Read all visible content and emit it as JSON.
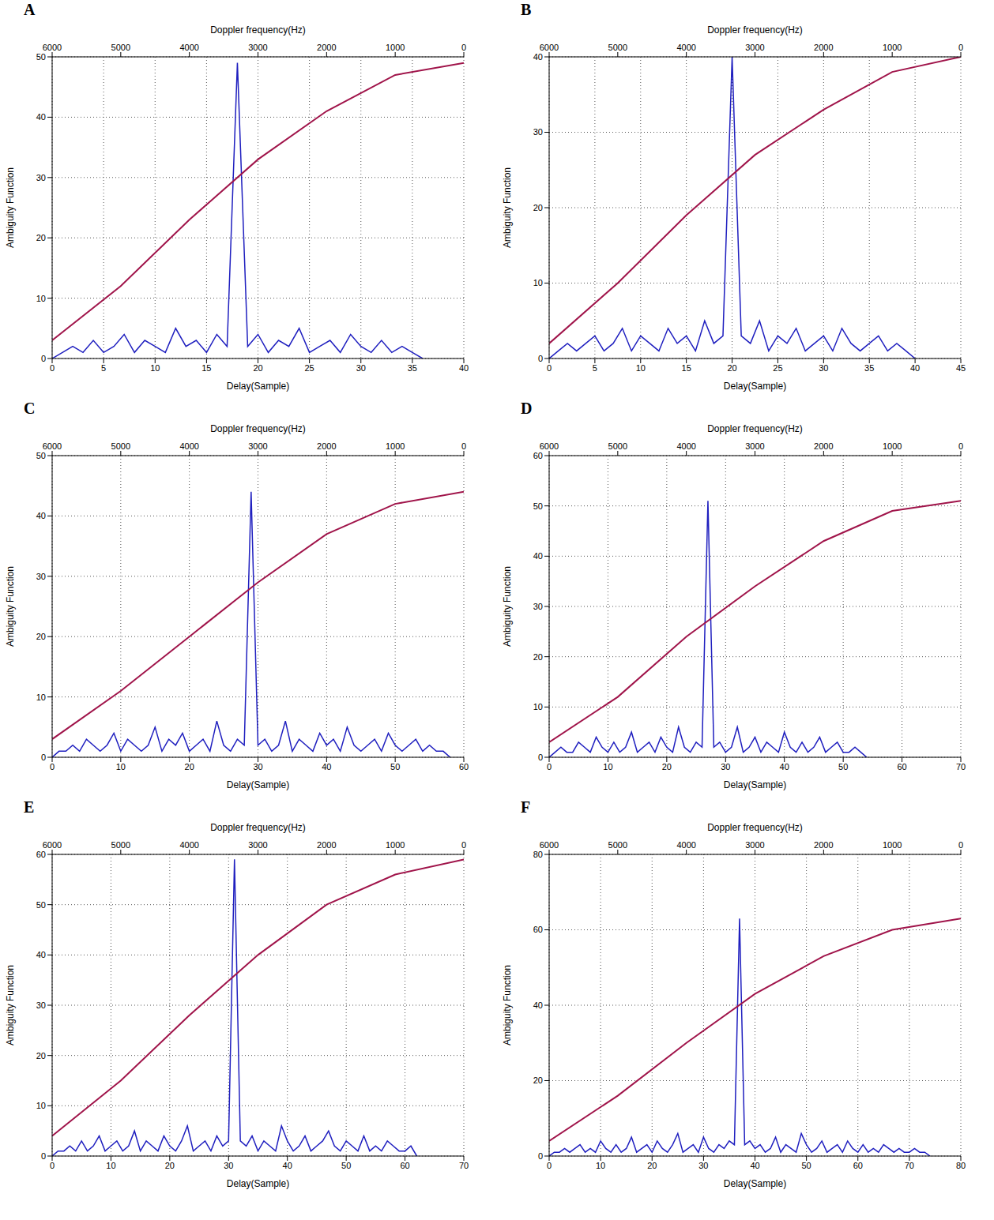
{
  "chart_data": [
    {
      "type": "line",
      "title": "A",
      "x_label": "Delay(Sample)",
      "y_label": "Ambiguity Function",
      "grid": true,
      "x": [
        0,
        1,
        2,
        3,
        4,
        5,
        6,
        7,
        8,
        9,
        10,
        11,
        12,
        13,
        14,
        15,
        16,
        17,
        18,
        19,
        20,
        21,
        22,
        23,
        24,
        25,
        26,
        27,
        28,
        29,
        30,
        31,
        32,
        33,
        34,
        35,
        36
      ],
      "series": [
        {
          "color": "#1f1fbf",
          "values": [
            0,
            1,
            2,
            1,
            3,
            1,
            2,
            4,
            1,
            3,
            2,
            1,
            5,
            2,
            3,
            1,
            4,
            2,
            49,
            2,
            4,
            1,
            3,
            2,
            5,
            1,
            2,
            3,
            1,
            4,
            2,
            1,
            3,
            1,
            2,
            1,
            0
          ]
        }
      ],
      "xlim": [
        0,
        40
      ],
      "xticks": [
        0,
        5,
        10,
        15,
        20,
        25,
        30,
        35,
        40
      ],
      "ylim": [
        0,
        50
      ],
      "yticks": [
        0,
        10,
        20,
        30,
        40,
        50
      ],
      "doppler": {
        "x_label": "Doppler frequency(Hz)",
        "x": [
          0,
          1000,
          2000,
          3000,
          4000,
          5000,
          6000
        ],
        "xlim": [
          0,
          6000
        ],
        "xticks": [
          0,
          1000,
          2000,
          3000,
          4000,
          5000,
          6000
        ],
        "series": [
          {
            "color": "#a0144a",
            "values": [
              49,
              47,
              41,
              33,
              23,
              12,
              3
            ]
          }
        ]
      }
    },
    {
      "type": "line",
      "title": "B",
      "x_label": "Delay(Sample)",
      "y_label": "Ambiguity Function",
      "grid": true,
      "x": [
        0,
        1,
        2,
        3,
        4,
        5,
        6,
        7,
        8,
        9,
        10,
        11,
        12,
        13,
        14,
        15,
        16,
        17,
        18,
        19,
        20,
        21,
        22,
        23,
        24,
        25,
        26,
        27,
        28,
        29,
        30,
        31,
        32,
        33,
        34,
        35,
        36,
        37,
        38,
        39,
        40
      ],
      "series": [
        {
          "color": "#1f1fbf",
          "values": [
            0,
            1,
            2,
            1,
            2,
            3,
            1,
            2,
            4,
            1,
            3,
            2,
            1,
            4,
            2,
            3,
            1,
            5,
            2,
            3,
            40,
            3,
            2,
            5,
            1,
            3,
            2,
            4,
            1,
            2,
            3,
            1,
            4,
            2,
            1,
            2,
            3,
            1,
            2,
            1,
            0
          ]
        }
      ],
      "xlim": [
        0,
        45
      ],
      "xticks": [
        0,
        5,
        10,
        15,
        20,
        25,
        30,
        35,
        40,
        45
      ],
      "ylim": [
        0,
        40
      ],
      "yticks": [
        0,
        10,
        20,
        30,
        40
      ],
      "doppler": {
        "x_label": "Doppler frequency(Hz)",
        "x": [
          0,
          1000,
          2000,
          3000,
          4000,
          5000,
          6000
        ],
        "xlim": [
          0,
          6000
        ],
        "xticks": [
          0,
          1000,
          2000,
          3000,
          4000,
          5000,
          6000
        ],
        "series": [
          {
            "color": "#a0144a",
            "values": [
              40,
              38,
              33,
              27,
              19,
              10,
              2
            ]
          }
        ]
      }
    },
    {
      "type": "line",
      "title": "C",
      "x_label": "Delay(Sample)",
      "y_label": "Ambiguity Function",
      "grid": true,
      "x": [
        0,
        1,
        2,
        3,
        4,
        5,
        6,
        7,
        8,
        9,
        10,
        11,
        12,
        13,
        14,
        15,
        16,
        17,
        18,
        19,
        20,
        21,
        22,
        23,
        24,
        25,
        26,
        27,
        28,
        29,
        30,
        31,
        32,
        33,
        34,
        35,
        36,
        37,
        38,
        39,
        40,
        41,
        42,
        43,
        44,
        45,
        46,
        47,
        48,
        49,
        50,
        51,
        52,
        53,
        54,
        55,
        56,
        57,
        58
      ],
      "series": [
        {
          "color": "#1f1fbf",
          "values": [
            0,
            1,
            1,
            2,
            1,
            3,
            2,
            1,
            2,
            4,
            1,
            3,
            2,
            1,
            2,
            5,
            1,
            3,
            2,
            4,
            1,
            2,
            3,
            1,
            6,
            2,
            1,
            3,
            2,
            44,
            2,
            3,
            1,
            2,
            6,
            1,
            3,
            2,
            1,
            4,
            2,
            3,
            1,
            5,
            2,
            1,
            2,
            3,
            1,
            4,
            2,
            1,
            2,
            3,
            1,
            2,
            1,
            1,
            0
          ]
        }
      ],
      "xlim": [
        0,
        60
      ],
      "xticks": [
        0,
        10,
        20,
        30,
        40,
        50,
        60
      ],
      "ylim": [
        0,
        50
      ],
      "yticks": [
        0,
        10,
        20,
        30,
        40,
        50
      ],
      "doppler": {
        "x_label": "Doppler frequency(Hz)",
        "x": [
          0,
          1000,
          2000,
          3000,
          4000,
          5000,
          6000
        ],
        "xlim": [
          0,
          6000
        ],
        "xticks": [
          0,
          1000,
          2000,
          3000,
          4000,
          5000,
          6000
        ],
        "series": [
          {
            "color": "#a0144a",
            "values": [
              44,
              42,
              37,
              29,
              20,
              11,
              3
            ]
          }
        ]
      }
    },
    {
      "type": "line",
      "title": "D",
      "x_label": "Delay(Sample)",
      "y_label": "Ambiguity Function",
      "grid": true,
      "x": [
        0,
        1,
        2,
        3,
        4,
        5,
        6,
        7,
        8,
        9,
        10,
        11,
        12,
        13,
        14,
        15,
        16,
        17,
        18,
        19,
        20,
        21,
        22,
        23,
        24,
        25,
        26,
        27,
        28,
        29,
        30,
        31,
        32,
        33,
        34,
        35,
        36,
        37,
        38,
        39,
        40,
        41,
        42,
        43,
        44,
        45,
        46,
        47,
        48,
        49,
        50,
        51,
        52,
        53,
        54
      ],
      "series": [
        {
          "color": "#1f1fbf",
          "values": [
            0,
            1,
            2,
            1,
            1,
            3,
            2,
            1,
            4,
            2,
            1,
            3,
            1,
            2,
            5,
            1,
            2,
            3,
            1,
            4,
            2,
            1,
            6,
            2,
            1,
            3,
            2,
            51,
            2,
            3,
            1,
            2,
            6,
            1,
            2,
            4,
            1,
            3,
            2,
            1,
            5,
            2,
            1,
            3,
            1,
            2,
            4,
            1,
            2,
            3,
            1,
            1,
            2,
            1,
            0
          ]
        }
      ],
      "xlim": [
        0,
        70
      ],
      "xticks": [
        0,
        10,
        20,
        30,
        40,
        50,
        60,
        70
      ],
      "ylim": [
        0,
        60
      ],
      "yticks": [
        0,
        10,
        20,
        30,
        40,
        50,
        60
      ],
      "doppler": {
        "x_label": "Doppler frequency(Hz)",
        "x": [
          0,
          1000,
          2000,
          3000,
          4000,
          5000,
          6000
        ],
        "xlim": [
          0,
          6000
        ],
        "xticks": [
          0,
          1000,
          2000,
          3000,
          4000,
          5000,
          6000
        ],
        "series": [
          {
            "color": "#a0144a",
            "values": [
              51,
              49,
              43,
              34,
              24,
              12,
              3
            ]
          }
        ]
      }
    },
    {
      "type": "line",
      "title": "E",
      "x_label": "Delay(Sample)",
      "y_label": "Ambiguity Function",
      "grid": true,
      "x": [
        0,
        1,
        2,
        3,
        4,
        5,
        6,
        7,
        8,
        9,
        10,
        11,
        12,
        13,
        14,
        15,
        16,
        17,
        18,
        19,
        20,
        21,
        22,
        23,
        24,
        25,
        26,
        27,
        28,
        29,
        30,
        31,
        32,
        33,
        34,
        35,
        36,
        37,
        38,
        39,
        40,
        41,
        42,
        43,
        44,
        45,
        46,
        47,
        48,
        49,
        50,
        51,
        52,
        53,
        54,
        55,
        56,
        57,
        58,
        59,
        60,
        61,
        62
      ],
      "series": [
        {
          "color": "#1f1fbf",
          "values": [
            0,
            1,
            1,
            2,
            1,
            3,
            1,
            2,
            4,
            1,
            2,
            3,
            1,
            2,
            5,
            1,
            3,
            2,
            1,
            4,
            2,
            1,
            3,
            6,
            1,
            2,
            3,
            1,
            4,
            2,
            3,
            59,
            3,
            2,
            4,
            1,
            3,
            2,
            1,
            6,
            3,
            1,
            2,
            4,
            1,
            2,
            3,
            5,
            2,
            1,
            3,
            2,
            1,
            4,
            1,
            2,
            1,
            3,
            2,
            1,
            1,
            2,
            0
          ]
        }
      ],
      "xlim": [
        0,
        70
      ],
      "xticks": [
        0,
        10,
        20,
        30,
        40,
        50,
        60,
        70
      ],
      "ylim": [
        0,
        60
      ],
      "yticks": [
        0,
        10,
        20,
        30,
        40,
        50,
        60
      ],
      "doppler": {
        "x_label": "Doppler frequency(Hz)",
        "x": [
          0,
          1000,
          2000,
          3000,
          4000,
          5000,
          6000
        ],
        "xlim": [
          0,
          6000
        ],
        "xticks": [
          0,
          1000,
          2000,
          3000,
          4000,
          5000,
          6000
        ],
        "series": [
          {
            "color": "#a0144a",
            "values": [
              59,
              56,
              50,
              40,
              28,
              15,
              4
            ]
          }
        ]
      }
    },
    {
      "type": "line",
      "title": "F",
      "x_label": "Delay(Sample)",
      "y_label": "Ambiguity Function",
      "grid": true,
      "x": [
        0,
        1,
        2,
        3,
        4,
        5,
        6,
        7,
        8,
        9,
        10,
        11,
        12,
        13,
        14,
        15,
        16,
        17,
        18,
        19,
        20,
        21,
        22,
        23,
        24,
        25,
        26,
        27,
        28,
        29,
        30,
        31,
        32,
        33,
        34,
        35,
        36,
        37,
        38,
        39,
        40,
        41,
        42,
        43,
        44,
        45,
        46,
        47,
        48,
        49,
        50,
        51,
        52,
        53,
        54,
        55,
        56,
        57,
        58,
        59,
        60,
        61,
        62,
        63,
        64,
        65,
        66,
        67,
        68,
        69,
        70,
        71,
        72,
        73,
        74
      ],
      "series": [
        {
          "color": "#1f1fbf",
          "values": [
            0,
            1,
            1,
            2,
            1,
            2,
            3,
            1,
            2,
            1,
            4,
            2,
            1,
            3,
            1,
            2,
            5,
            1,
            2,
            3,
            1,
            4,
            2,
            1,
            3,
            6,
            1,
            2,
            3,
            1,
            5,
            2,
            1,
            3,
            2,
            4,
            3,
            63,
            3,
            4,
            2,
            3,
            1,
            2,
            5,
            1,
            3,
            2,
            1,
            6,
            3,
            1,
            2,
            4,
            1,
            2,
            3,
            1,
            4,
            2,
            1,
            3,
            1,
            2,
            1,
            3,
            2,
            1,
            2,
            1,
            1,
            2,
            1,
            1,
            0
          ]
        }
      ],
      "xlim": [
        0,
        80
      ],
      "xticks": [
        0,
        10,
        20,
        30,
        40,
        50,
        60,
        70,
        80
      ],
      "ylim": [
        0,
        80
      ],
      "yticks": [
        0,
        20,
        40,
        60,
        80
      ],
      "doppler": {
        "x_label": "Doppler frequency(Hz)",
        "x": [
          0,
          1000,
          2000,
          3000,
          4000,
          5000,
          6000
        ],
        "xlim": [
          0,
          6000
        ],
        "xticks": [
          0,
          1000,
          2000,
          3000,
          4000,
          5000,
          6000
        ],
        "series": [
          {
            "color": "#a0144a",
            "values": [
              63,
              60,
              53,
              43,
              30,
              16,
              4
            ]
          }
        ]
      }
    }
  ]
}
